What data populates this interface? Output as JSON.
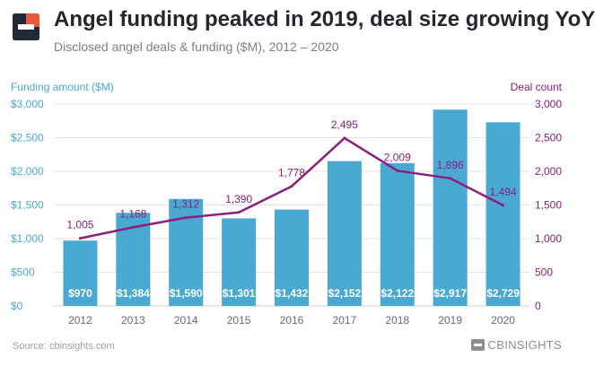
{
  "header": {
    "title": "Angel funding peaked in 2019, deal size growing YoY",
    "subtitle": "Disclosed angel deals & funding ($M), 2012 – 2020"
  },
  "footer": {
    "source": "Source: cbinsights.com",
    "brand": "CBINSIGHTS"
  },
  "colors": {
    "bar": "#4aa9d3",
    "line": "#8b1e7f",
    "left_axis": "#4aa9d3",
    "right_axis": "#8b1e7f",
    "grid": "#e3e3e3",
    "tick": "#6b6b6b"
  },
  "chart_data": {
    "type": "bar+line",
    "categories": [
      "2012",
      "2013",
      "2014",
      "2015",
      "2016",
      "2017",
      "2018",
      "2019",
      "2020"
    ],
    "series": [
      {
        "name": "Funding amount ($M)",
        "type": "bar",
        "axis": "left",
        "values": [
          970,
          1384,
          1590,
          1301,
          1432,
          2152,
          2122,
          2917,
          2729
        ],
        "labels": [
          "$970",
          "$1,384",
          "$1,590",
          "$1,301",
          "$1,432",
          "$2,152",
          "$2,122",
          "$2,917",
          "$2,729"
        ]
      },
      {
        "name": "Deal count",
        "type": "line",
        "axis": "right",
        "values": [
          1005,
          1168,
          1312,
          1390,
          1778,
          2495,
          2009,
          1896,
          1494
        ],
        "labels": [
          "1,005",
          "1,168",
          "1,312",
          "1,390",
          "1,778",
          "2,495",
          "2,009",
          "1,896",
          "1,494"
        ]
      }
    ],
    "left_axis": {
      "label": "Funding amount ($M)",
      "ylim": [
        0,
        3000
      ],
      "ticks": [
        0,
        500,
        1000,
        1500,
        2000,
        2500,
        3000
      ],
      "tick_labels": [
        "$0",
        "$500",
        "$1,000",
        "$1,500",
        "$2,000",
        "$2,500",
        "$3,000"
      ]
    },
    "right_axis": {
      "label": "Deal count",
      "ylim": [
        0,
        3000
      ],
      "ticks": [
        0,
        500,
        1000,
        1500,
        2000,
        2500,
        3000
      ],
      "tick_labels": [
        "0",
        "500",
        "1,000",
        "1,500",
        "2,000",
        "2,500",
        "3,000"
      ]
    },
    "grid": true
  }
}
